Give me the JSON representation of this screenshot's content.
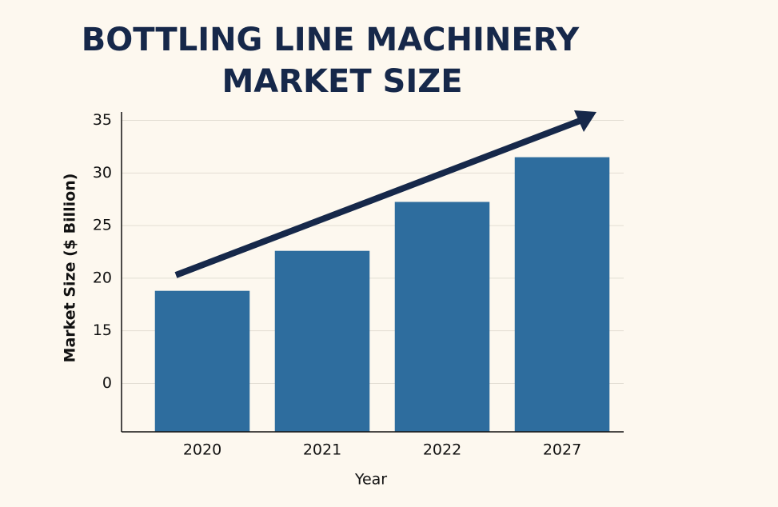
{
  "chart_data": {
    "type": "bar",
    "title": [
      "BOTTLING LINE MACHINERY",
      "MARKET SIZE"
    ],
    "x_label": "Year",
    "y_label": "Market Size ($ Billion)",
    "categories": [
      "2020",
      "2021",
      "2022",
      "2027"
    ],
    "values": [
      18.8,
      22.6,
      27.25,
      31.5
    ],
    "color": "#2e6d9e",
    "ylim": [
      5.4,
      35.8
    ],
    "yticks": [
      35,
      30,
      25,
      20,
      15,
      {
        "value": 10,
        "label": "0"
      }
    ],
    "grid": true
  }
}
